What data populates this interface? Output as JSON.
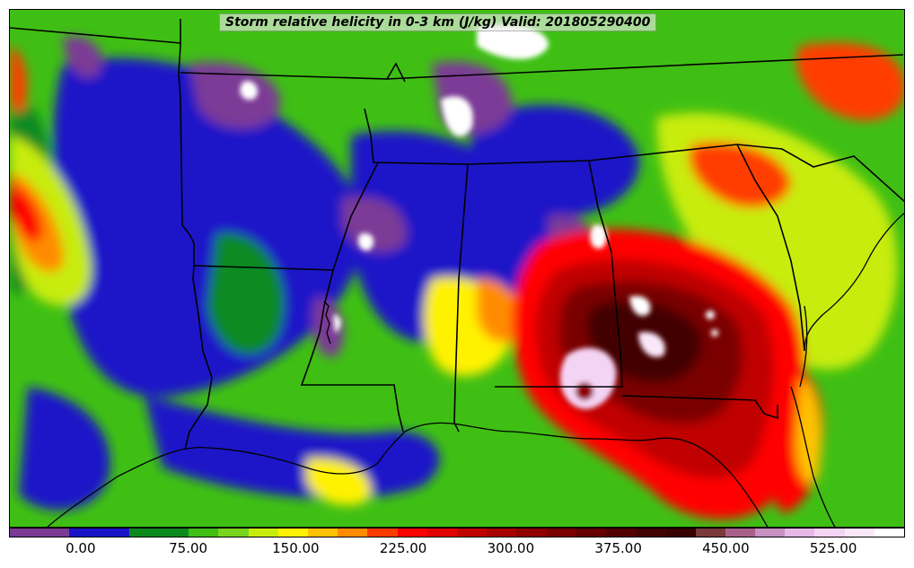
{
  "title": "Storm relative helicity in 0-3 km (J/kg) Valid: 201805290400",
  "colorbar": {
    "tick_labels": [
      "0.00",
      "75.00",
      "150.00",
      "225.00",
      "300.00",
      "375.00",
      "450.00",
      "525.00"
    ],
    "tick_values": [
      0,
      75,
      150,
      225,
      300,
      375,
      450,
      525
    ],
    "range": [
      -50,
      575
    ],
    "colors": [
      "#7b3a96",
      "#7b3a96",
      "#1a14c8",
      "#1a14c8",
      "#0c8a20",
      "#0c8a20",
      "#3fbf14",
      "#78d41e",
      "#c8ec0a",
      "#fff200",
      "#ffc200",
      "#ff8c00",
      "#ff3c00",
      "#ff0000",
      "#e00000",
      "#c00000",
      "#a80000",
      "#900000",
      "#7a0000",
      "#640000",
      "#520000",
      "#420000",
      "#380000",
      "#7a3a3a",
      "#a8608a",
      "#c890c0",
      "#e6b8e6",
      "#f4d4f4",
      "#fae8fa",
      "#ffffff"
    ]
  },
  "map_colors": {
    "background": "#3fbf14",
    "low_negative": "#7b3a96",
    "near_zero": "#1a14c8",
    "moderate": "#0c8a20",
    "elevated": "#c8ec0a",
    "high": "#ff0000",
    "very_high": "#900000",
    "extreme": "#f4d4f4"
  }
}
